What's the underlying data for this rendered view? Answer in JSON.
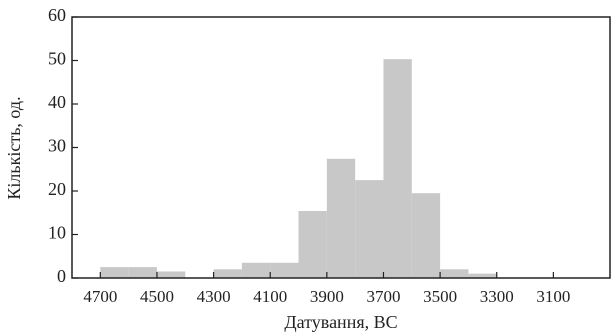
{
  "chart_data": {
    "type": "histogram",
    "xlabel": "Датування, BC",
    "ylabel": "Кількість, од.",
    "bins": [
      4700,
      4600,
      4500,
      4400,
      4300,
      4200,
      4100,
      4000,
      3900,
      3800,
      3700,
      3600,
      3500,
      3400,
      3300
    ],
    "values": [
      2.5,
      2.5,
      1.5,
      0,
      2,
      3.5,
      3.5,
      15.4,
      27.4,
      22.5,
      50.3,
      19.5,
      2,
      1
    ],
    "color": "#c8c8c8",
    "xlim": [
      4800,
      2900
    ],
    "xticks": [
      4700,
      4500,
      4300,
      4100,
      3900,
      3700,
      3500,
      3300,
      3100
    ],
    "ylim": [
      0,
      60
    ],
    "yticks": [
      0,
      10,
      20,
      30,
      40,
      50,
      60
    ]
  }
}
